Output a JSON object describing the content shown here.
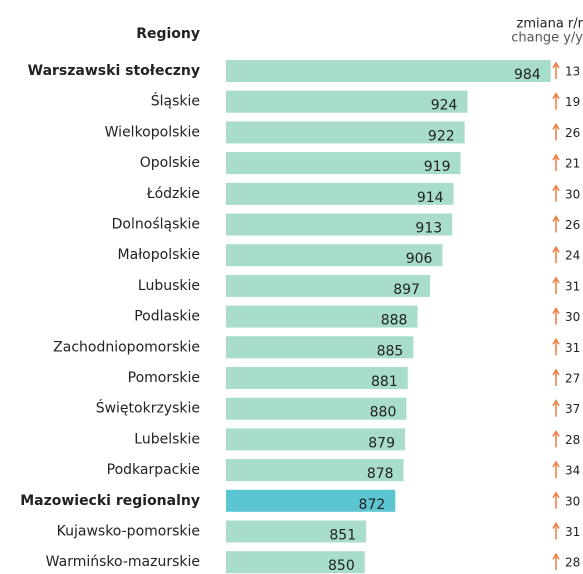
{
  "chart_data": {
    "type": "barh",
    "category_header": "Regiony",
    "change_header": [
      "zmiana r/r",
      "change y/y"
    ],
    "categories": [
      "Warszawski stołeczny",
      "Śląskie",
      "Wielkopolskie",
      "Opolskie",
      "Łódzkie",
      "Dolnośląskie",
      "Małopolskie",
      "Lubuskie",
      "Podlaskie",
      "Zachodniopomorskie",
      "Pomorskie",
      "Świętokrzyskie",
      "Lubelskie",
      "Podkarpackie",
      "Mazowiecki regionalny",
      "Kujawsko-pomorskie",
      "Warmińsko-mazurskie"
    ],
    "values": [
      984,
      924,
      922,
      919,
      914,
      913,
      906,
      897,
      888,
      885,
      881,
      880,
      879,
      878,
      872,
      851,
      850
    ],
    "changes": [
      13,
      19,
      26,
      21,
      30,
      26,
      24,
      31,
      30,
      31,
      27,
      37,
      28,
      34,
      30,
      31,
      28
    ],
    "colors": [
      "#a8dccb",
      "#a8dccb",
      "#a8dccb",
      "#a8dccb",
      "#a8dccb",
      "#a8dccb",
      "#a8dccb",
      "#a8dccb",
      "#a8dccb",
      "#a8dccb",
      "#a8dccb",
      "#a8dccb",
      "#a8dccb",
      "#a8dccb",
      "#5bc6d2",
      "#a8dccb",
      "#a8dccb"
    ],
    "bold_categories": [
      0,
      14
    ],
    "arrow_color": "#f07b3f",
    "xlim": [
      750,
      990
    ]
  }
}
